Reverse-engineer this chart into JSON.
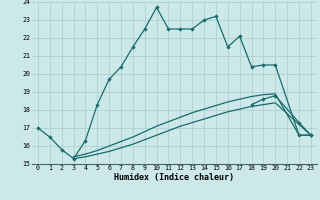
{
  "xlabel": "Humidex (Indice chaleur)",
  "bg_color": "#cce8e8",
  "line_color": "#1a6b6b",
  "grid_color": "#aacccc",
  "xlim": [
    -0.5,
    23.5
  ],
  "ylim": [
    15,
    24
  ],
  "xticks": [
    0,
    1,
    2,
    3,
    4,
    5,
    6,
    7,
    8,
    9,
    10,
    11,
    12,
    13,
    14,
    15,
    16,
    17,
    18,
    19,
    20,
    21,
    22,
    23
  ],
  "yticks": [
    15,
    16,
    17,
    18,
    19,
    20,
    21,
    22,
    23,
    24
  ],
  "line1_x": [
    0,
    1,
    2,
    3,
    4,
    5,
    6,
    7,
    8,
    9,
    10,
    11,
    12,
    13,
    14,
    15,
    16,
    17,
    18,
    19,
    20,
    22,
    23
  ],
  "line1_y": [
    17.0,
    16.5,
    15.8,
    15.3,
    16.3,
    18.3,
    19.7,
    20.4,
    21.5,
    22.5,
    23.7,
    22.5,
    22.5,
    22.5,
    23.0,
    23.2,
    21.5,
    22.1,
    20.4,
    20.5,
    20.5,
    16.6,
    16.6
  ],
  "line2_x": [
    18,
    19,
    20,
    22,
    23
  ],
  "line2_y": [
    18.3,
    18.6,
    18.8,
    17.3,
    16.6
  ],
  "line3_x": [
    3,
    4,
    5,
    6,
    7,
    8,
    9,
    10,
    11,
    12,
    13,
    14,
    15,
    16,
    17,
    18,
    19,
    20,
    22,
    23
  ],
  "line3_y": [
    15.4,
    15.55,
    15.75,
    16.0,
    16.25,
    16.5,
    16.8,
    17.1,
    17.35,
    17.6,
    17.85,
    18.05,
    18.25,
    18.45,
    18.6,
    18.75,
    18.85,
    18.9,
    16.6,
    16.6
  ],
  "line4_x": [
    3,
    4,
    5,
    6,
    7,
    8,
    9,
    10,
    11,
    12,
    13,
    14,
    15,
    16,
    17,
    18,
    19,
    20,
    23
  ],
  "line4_y": [
    15.3,
    15.4,
    15.55,
    15.7,
    15.9,
    16.1,
    16.35,
    16.6,
    16.85,
    17.1,
    17.3,
    17.5,
    17.7,
    17.9,
    18.05,
    18.2,
    18.3,
    18.4,
    16.6
  ]
}
